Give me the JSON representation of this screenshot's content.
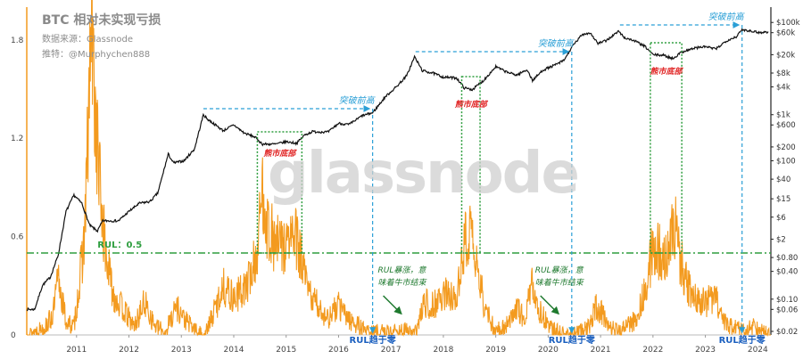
{
  "header": {
    "title": "BTC 相对未实现亏损",
    "source": "数据来源：Glassnode",
    "twitter": "推特：@Murphychen888"
  },
  "watermark": "glassnode",
  "colors": {
    "price": "#111111",
    "rul": "#f39a1e",
    "threshold": "#2e9e3f",
    "box": "#2e9e3f",
    "ath": "#2a9fd6",
    "bottom_text": "#e02020",
    "note_text": "#1f7a2f",
    "axis_label": "#1a5fbf",
    "left_axis": "#f39a1e"
  },
  "chart_data": {
    "type": "line",
    "title": "BTC 相对未实现亏损",
    "x_axis": {
      "range": [
        2010.55,
        2024.75
      ],
      "ticks": [
        "2011",
        "2012",
        "2013",
        "2014",
        "2015",
        "2016",
        "2017",
        "2018",
        "2019",
        "2020",
        "2021",
        "2022",
        "2023",
        "2024"
      ]
    },
    "left_axis": {
      "range": [
        0,
        2.0
      ],
      "ticks": [
        "0",
        "0.6",
        "1.2",
        "1.8"
      ]
    },
    "right_axis": {
      "scale": "log",
      "ticks": [
        "$100k",
        "$60k",
        "$20k",
        "$8k",
        "$4k",
        "$1k",
        "$600",
        "$200",
        "$100",
        "$40",
        "$15",
        "$6",
        "$2",
        "$0.80",
        "$0.40",
        "$0.10",
        "$0.06",
        "$0.02"
      ]
    },
    "threshold": {
      "value": 0.5,
      "label": "RUL：0.5"
    },
    "series": [
      {
        "axis": "right",
        "points": [
          [
            2010.55,
            0.06
          ],
          [
            2010.7,
            0.06
          ],
          [
            2010.85,
            0.2
          ],
          [
            2011.0,
            0.3
          ],
          [
            2011.15,
            0.9
          ],
          [
            2011.3,
            8
          ],
          [
            2011.45,
            18
          ],
          [
            2011.6,
            12
          ],
          [
            2011.75,
            4
          ],
          [
            2011.9,
            3
          ],
          [
            2012.0,
            5
          ],
          [
            2012.3,
            5
          ],
          [
            2012.5,
            8
          ],
          [
            2012.7,
            12
          ],
          [
            2012.9,
            13
          ],
          [
            2013.05,
            20
          ],
          [
            2013.25,
            140
          ],
          [
            2013.35,
            90
          ],
          [
            2013.55,
            100
          ],
          [
            2013.75,
            180
          ],
          [
            2013.92,
            1000
          ],
          [
            2014.0,
            800
          ],
          [
            2014.15,
            600
          ],
          [
            2014.3,
            450
          ],
          [
            2014.5,
            600
          ],
          [
            2014.7,
            400
          ],
          [
            2014.9,
            330
          ],
          [
            2015.05,
            230
          ],
          [
            2015.3,
            230
          ],
          [
            2015.5,
            260
          ],
          [
            2015.7,
            240
          ],
          [
            2015.85,
            360
          ],
          [
            2016.0,
            430
          ],
          [
            2016.3,
            420
          ],
          [
            2016.5,
            650
          ],
          [
            2016.7,
            610
          ],
          [
            2016.95,
            950
          ],
          [
            2017.15,
            1100
          ],
          [
            2017.4,
            2500
          ],
          [
            2017.6,
            4000
          ],
          [
            2017.8,
            7000
          ],
          [
            2017.95,
            18000
          ],
          [
            2018.1,
            9000
          ],
          [
            2018.3,
            8000
          ],
          [
            2018.5,
            6500
          ],
          [
            2018.75,
            6300
          ],
          [
            2018.9,
            3800
          ],
          [
            2019.05,
            3500
          ],
          [
            2019.25,
            5300
          ],
          [
            2019.5,
            11000
          ],
          [
            2019.7,
            8500
          ],
          [
            2019.9,
            7200
          ],
          [
            2020.1,
            9500
          ],
          [
            2020.2,
            5500
          ],
          [
            2020.4,
            9300
          ],
          [
            2020.6,
            11500
          ],
          [
            2020.8,
            15000
          ],
          [
            2020.95,
            29000
          ],
          [
            2021.15,
            55000
          ],
          [
            2021.3,
            60000
          ],
          [
            2021.45,
            35000
          ],
          [
            2021.6,
            40000
          ],
          [
            2021.85,
            65000
          ],
          [
            2021.95,
            47000
          ],
          [
            2022.15,
            40000
          ],
          [
            2022.35,
            30000
          ],
          [
            2022.5,
            20000
          ],
          [
            2022.7,
            19500
          ],
          [
            2022.88,
            16500
          ],
          [
            2023.05,
            23000
          ],
          [
            2023.3,
            28000
          ],
          [
            2023.5,
            30000
          ],
          [
            2023.7,
            26500
          ],
          [
            2023.9,
            40000
          ],
          [
            2024.1,
            50000
          ],
          [
            2024.2,
            70000
          ],
          [
            2024.4,
            65000
          ],
          [
            2024.55,
            60000
          ],
          [
            2024.7,
            63000
          ]
        ]
      },
      {
        "axis": "left",
        "points": [
          [
            2010.55,
            0.0
          ],
          [
            2010.9,
            0.05
          ],
          [
            2011.05,
            0.12
          ],
          [
            2011.15,
            0.35
          ],
          [
            2011.3,
            0.08
          ],
          [
            2011.45,
            0.05
          ],
          [
            2011.55,
            0.3
          ],
          [
            2011.65,
            0.6
          ],
          [
            2011.72,
            1.2
          ],
          [
            2011.78,
            1.9
          ],
          [
            2011.85,
            1.4
          ],
          [
            2011.95,
            0.9
          ],
          [
            2012.05,
            0.5
          ],
          [
            2012.2,
            0.25
          ],
          [
            2012.4,
            0.15
          ],
          [
            2012.6,
            0.05
          ],
          [
            2012.8,
            0.2
          ],
          [
            2013.0,
            0.05
          ],
          [
            2013.2,
            0.02
          ],
          [
            2013.4,
            0.18
          ],
          [
            2013.55,
            0.1
          ],
          [
            2013.8,
            0.02
          ],
          [
            2013.95,
            0.0
          ],
          [
            2014.1,
            0.12
          ],
          [
            2014.3,
            0.3
          ],
          [
            2014.5,
            0.22
          ],
          [
            2014.75,
            0.3
          ],
          [
            2014.95,
            0.5
          ],
          [
            2015.05,
            0.9
          ],
          [
            2015.15,
            0.65
          ],
          [
            2015.3,
            0.55
          ],
          [
            2015.5,
            0.55
          ],
          [
            2015.65,
            0.62
          ],
          [
            2015.8,
            0.45
          ],
          [
            2015.9,
            0.28
          ],
          [
            2016.05,
            0.2
          ],
          [
            2016.3,
            0.1
          ],
          [
            2016.5,
            0.18
          ],
          [
            2016.7,
            0.1
          ],
          [
            2016.9,
            0.05
          ],
          [
            2017.1,
            0.02
          ],
          [
            2017.5,
            0.02
          ],
          [
            2017.8,
            0.03
          ],
          [
            2017.95,
            0.0
          ],
          [
            2018.05,
            0.1
          ],
          [
            2018.15,
            0.2
          ],
          [
            2018.3,
            0.18
          ],
          [
            2018.5,
            0.25
          ],
          [
            2018.7,
            0.22
          ],
          [
            2018.85,
            0.4
          ],
          [
            2018.95,
            0.65
          ],
          [
            2019.05,
            0.55
          ],
          [
            2019.15,
            0.4
          ],
          [
            2019.3,
            0.15
          ],
          [
            2019.5,
            0.02
          ],
          [
            2019.75,
            0.08
          ],
          [
            2019.9,
            0.18
          ],
          [
            2020.05,
            0.1
          ],
          [
            2020.2,
            0.3
          ],
          [
            2020.3,
            0.18
          ],
          [
            2020.5,
            0.05
          ],
          [
            2020.7,
            0.02
          ],
          [
            2020.9,
            0.0
          ],
          [
            2021.1,
            0.02
          ],
          [
            2021.3,
            0.05
          ],
          [
            2021.4,
            0.18
          ],
          [
            2021.55,
            0.12
          ],
          [
            2021.7,
            0.05
          ],
          [
            2021.85,
            0.02
          ],
          [
            2022.0,
            0.05
          ],
          [
            2022.2,
            0.1
          ],
          [
            2022.4,
            0.35
          ],
          [
            2022.5,
            0.55
          ],
          [
            2022.65,
            0.5
          ],
          [
            2022.8,
            0.48
          ],
          [
            2022.9,
            0.7
          ],
          [
            2023.0,
            0.5
          ],
          [
            2023.15,
            0.3
          ],
          [
            2023.3,
            0.25
          ],
          [
            2023.5,
            0.2
          ],
          [
            2023.7,
            0.22
          ],
          [
            2023.85,
            0.1
          ],
          [
            2024.0,
            0.05
          ],
          [
            2024.2,
            0.03
          ],
          [
            2024.4,
            0.05
          ],
          [
            2024.6,
            0.02
          ],
          [
            2024.75,
            0.0
          ]
        ]
      }
    ],
    "ath_segments": [
      {
        "from": 2013.92,
        "to": 2017.15,
        "label": "突破前高"
      },
      {
        "from": 2017.97,
        "to": 2020.95,
        "label": "突破前高"
      },
      {
        "from": 2021.87,
        "to": 2024.2,
        "label": "突破前高"
      }
    ],
    "bear_boxes": [
      {
        "from": 2014.95,
        "to": 2015.8,
        "label": "熊市底部"
      },
      {
        "from": 2018.85,
        "to": 2019.2,
        "label": "熊市底部"
      },
      {
        "from": 2022.45,
        "to": 2023.05,
        "label": "熊市底部"
      }
    ],
    "rul_notes": [
      {
        "year": 2018.0,
        "lines": [
          "RUL暴涨，意",
          "味着牛市结束"
        ]
      },
      {
        "year": 2021.0,
        "lines": [
          "RUL暴涨，意",
          "味着牛市结束"
        ]
      }
    ],
    "zero_markers": [
      {
        "year": 2017.15,
        "label": "RUL趋于零"
      },
      {
        "year": 2020.95,
        "label": "RUL趋于零"
      },
      {
        "year": 2024.2,
        "label": "RUL趋于零"
      }
    ]
  }
}
